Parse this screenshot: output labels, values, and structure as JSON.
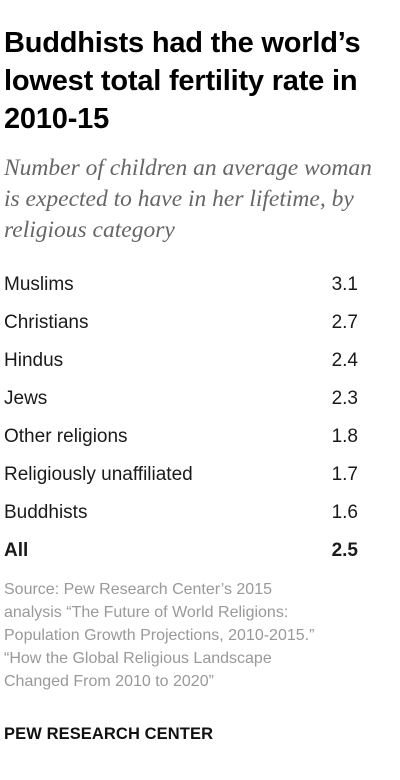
{
  "title": "Buddhists had the world’s lowest total fertility rate in 2010-15",
  "subtitle": "Number of children an average woman is expected to have in her lifetime, by religious category",
  "chart_data": {
    "type": "table",
    "title": "Buddhists had the world’s lowest total fertility rate in 2010-15",
    "subtitle": "Number of children an average woman is expected to have in her lifetime, by religious category",
    "categories": [
      "Muslims",
      "Christians",
      "Hindus",
      "Jews",
      "Other religions",
      "Religiously unaffiliated",
      "Buddhists"
    ],
    "values": [
      "3.1",
      "2.7",
      "2.4",
      "2.3",
      "1.8",
      "1.7",
      "1.6"
    ],
    "total": {
      "label": "All",
      "value": "2.5"
    },
    "rows": [
      {
        "label": "Muslims",
        "value": "3.1"
      },
      {
        "label": "Christians",
        "value": "2.7"
      },
      {
        "label": "Hindus",
        "value": "2.4"
      },
      {
        "label": "Jews",
        "value": "2.3"
      },
      {
        "label": "Other religions",
        "value": "1.8"
      },
      {
        "label": "Religiously unaffiliated",
        "value": "1.7"
      },
      {
        "label": "Buddhists",
        "value": "1.6"
      },
      {
        "label": "All",
        "value": "2.5"
      }
    ]
  },
  "source": {
    "line1": "Source: Pew Research Center’s 2015",
    "line2": "analysis “The Future of World Religions:",
    "line3": "Population Growth Projections, 2010-2015.”",
    "line4": "“How the Global Religious Landscape",
    "line5": "Changed From 2010 to 2020”"
  },
  "brand": "PEW RESEARCH CENTER"
}
